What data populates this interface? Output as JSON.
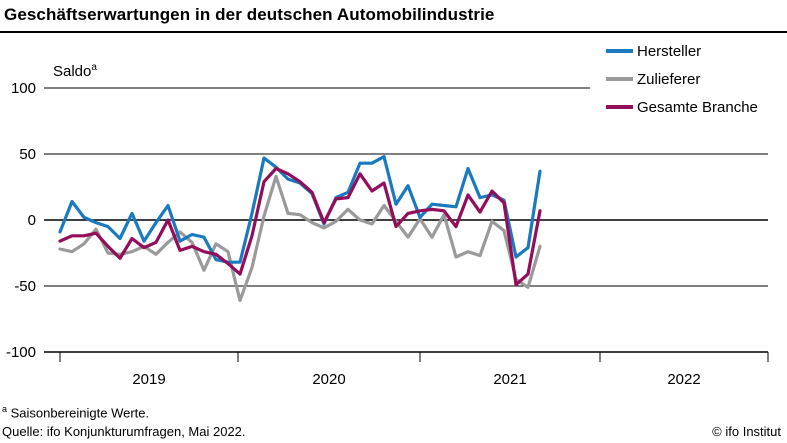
{
  "title": "Geschäftserwartungen in der deutschen Automobilindustrie",
  "footnote": {
    "marker": "a",
    "text": " Saisonbereinigte Werte."
  },
  "source": "Quelle: ifo Konjunkturumfragen, Mai 2022.",
  "credit": "© ifo Institut",
  "chart_data": {
    "type": "line",
    "ylabel": "Saldo",
    "ylabel_marker": "a",
    "ylim": [
      -100,
      100
    ],
    "yticks": [
      100,
      50,
      0,
      -50,
      -100
    ],
    "ytick_labels": [
      "100",
      "50",
      "0",
      "-50",
      "-100"
    ],
    "year_labels": [
      "2019",
      "2020",
      "2021",
      "2022"
    ],
    "x_start": "2019-01",
    "x_end": "2022-12",
    "grid": "horizontal",
    "legend_position": "top-right",
    "series": [
      {
        "name": "Hersteller",
        "color": "#1a7ac0",
        "values": [
          -9,
          14,
          2,
          -2,
          -5,
          -14,
          5,
          -16,
          -2,
          11,
          -16,
          -11,
          -13,
          -30,
          -32,
          -32,
          5,
          47,
          40,
          31,
          28,
          20,
          -3,
          17,
          21,
          43,
          43,
          48,
          12,
          26,
          2,
          12,
          11,
          10,
          39,
          17,
          19,
          15,
          -28,
          -21,
          37
        ]
      },
      {
        "name": "Zulieferer",
        "color": "#9a9a9a",
        "values": [
          -22,
          -24,
          -18,
          -7,
          -25,
          -26,
          -24,
          -20,
          -26,
          -17,
          -9,
          -17,
          -38,
          -18,
          -24,
          -61,
          -36,
          3,
          33,
          5,
          4,
          -2,
          -6,
          -1,
          8,
          0,
          -3,
          11,
          -1,
          -13,
          1,
          -13,
          4,
          -28,
          -24,
          -27,
          -1,
          -8,
          -45,
          -51,
          -20
        ]
      },
      {
        "name": "Gesamte Branche",
        "color": "#930d5a",
        "values": [
          -16,
          -12,
          -12,
          -10,
          -20,
          -29,
          -14,
          -21,
          -17,
          0,
          -23,
          -20,
          -24,
          -26,
          -33,
          -41,
          -12,
          29,
          39,
          35,
          29,
          21,
          -2,
          16,
          17,
          35,
          22,
          28,
          -5,
          5,
          7,
          8,
          7,
          -5,
          19,
          6,
          22,
          13,
          -49,
          -41,
          7
        ]
      }
    ]
  }
}
